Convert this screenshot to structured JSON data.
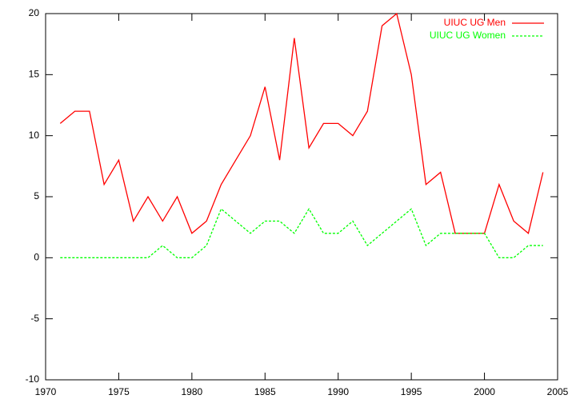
{
  "chart_data": {
    "type": "line",
    "x": [
      1971,
      1972,
      1973,
      1974,
      1975,
      1976,
      1977,
      1978,
      1979,
      1980,
      1981,
      1982,
      1983,
      1984,
      1985,
      1986,
      1987,
      1988,
      1989,
      1990,
      1991,
      1992,
      1993,
      1994,
      1995,
      1996,
      1997,
      1998,
      1999,
      2000,
      2001,
      2002,
      2003,
      2004
    ],
    "series": [
      {
        "name": "UIUC UG Men",
        "color": "#ff0000",
        "dash": false,
        "values": [
          11,
          12,
          12,
          6,
          8,
          3,
          5,
          3,
          5,
          2,
          3,
          6,
          8,
          10,
          14,
          8,
          18,
          9,
          11,
          11,
          10,
          12,
          19,
          20,
          15,
          6,
          7,
          2,
          2,
          2,
          6,
          3,
          2,
          7
        ]
      },
      {
        "name": "UIUC UG Women",
        "color": "#00ff00",
        "dash": true,
        "values": [
          0,
          0,
          0,
          0,
          0,
          0,
          0,
          1,
          0,
          0,
          1,
          4,
          3,
          2,
          3,
          3,
          2,
          4,
          2,
          2,
          3,
          1,
          2,
          3,
          4,
          1,
          2,
          2,
          2,
          2,
          0,
          0,
          1,
          1
        ]
      }
    ],
    "xlim": [
      1970,
      2005
    ],
    "xticks": [
      1970,
      1975,
      1980,
      1985,
      1990,
      1995,
      2000,
      2005
    ],
    "ylim": [
      -10,
      20
    ],
    "yticks": [
      -10,
      -5,
      0,
      5,
      10,
      15,
      20
    ],
    "legend": "top-right"
  }
}
